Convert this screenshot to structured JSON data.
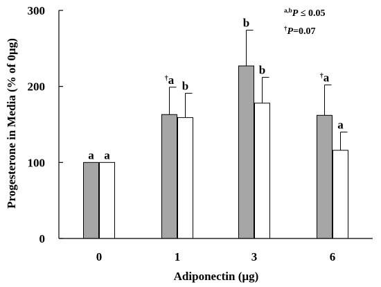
{
  "chart_data": {
    "type": "bar",
    "xlabel": "Adiponectin (µg)",
    "ylabel": "Progesterone in Media (% of 0µg)",
    "ylim": [
      0,
      300
    ],
    "yticks": [
      0,
      100,
      200,
      300
    ],
    "categories": [
      "0",
      "1",
      "3",
      "6"
    ],
    "series": [
      {
        "fill": "#a6a6a6",
        "values": [
          100,
          163,
          227,
          162
        ],
        "errors": [
          0,
          36,
          47,
          40
        ],
        "sig_labels": [
          "a",
          "a",
          "b",
          "a"
        ],
        "sig_marks": [
          "",
          "†",
          "",
          "†"
        ]
      },
      {
        "fill": "#ffffff",
        "values": [
          100,
          159,
          178,
          116
        ],
        "errors": [
          0,
          32,
          34,
          24
        ],
        "sig_labels": [
          "a",
          "b",
          "b",
          "a"
        ],
        "sig_marks": [
          "",
          "",
          "",
          ""
        ]
      }
    ],
    "annotations": [
      {
        "superscript": "a,b",
        "text": "P ≤ 0.05"
      },
      {
        "superscript": "†",
        "text": "P=0.07"
      }
    ]
  }
}
